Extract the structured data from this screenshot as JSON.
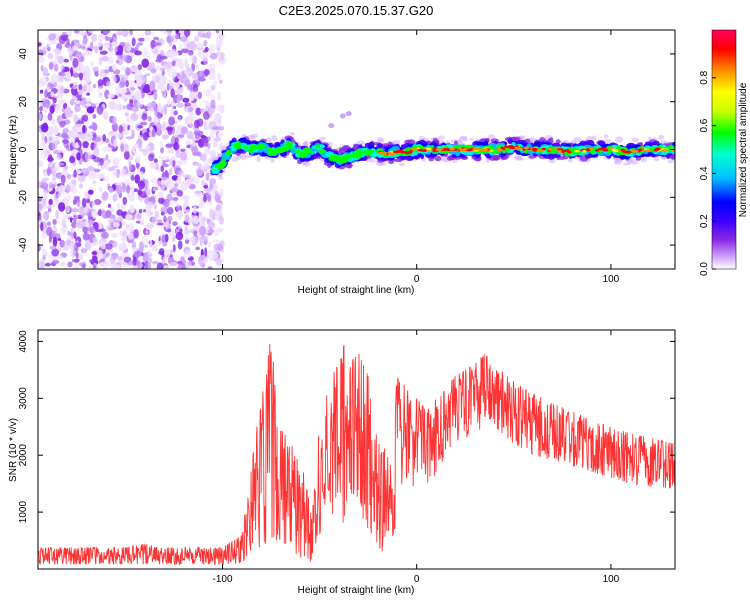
{
  "chart_data": [
    {
      "type": "heatmap",
      "title": "C2E3.2025.070.15.37.G20",
      "xlabel": "Height of straight line (km)",
      "ylabel": "Frequency (Hz)",
      "xlim": [
        -195,
        133
      ],
      "ylim": [
        -50,
        50
      ],
      "x_ticks": [
        -100,
        0,
        100
      ],
      "x_tick_labels": [
        "-100",
        "0",
        "100"
      ],
      "y_ticks": [
        -40,
        -20,
        0,
        20,
        40
      ],
      "y_tick_labels": [
        "-40",
        "-20",
        "0",
        "20",
        "40"
      ],
      "grid": false,
      "colorbar": {
        "label": "Normalized spectral amplitude",
        "range": [
          0,
          1
        ],
        "ticks": [
          0.0,
          0.2,
          0.4,
          0.6,
          0.8
        ],
        "tick_labels": [
          "0.0",
          "0.2",
          "0.4",
          "0.6",
          "0.8"
        ],
        "colors": [
          "#ffffff",
          "#cfa6ff",
          "#8a2be2",
          "#3d00ff",
          "#0000ff",
          "#00bfff",
          "#00ffd0",
          "#00ff00",
          "#ccff00",
          "#ffff00",
          "#ff8c00",
          "#ff0000",
          "#ff0060"
        ]
      },
      "regions": {
        "noise_x": [
          -195,
          -100
        ],
        "signal_x": [
          -105,
          133
        ],
        "signal_center_hz": [
          [
            -105,
            -9
          ],
          [
            -100,
            -6
          ],
          [
            -95,
            1
          ],
          [
            -90,
            2
          ],
          [
            -85,
            0
          ],
          [
            -80,
            1
          ],
          [
            -75,
            -1
          ],
          [
            -70,
            0
          ],
          [
            -65,
            2
          ],
          [
            -60,
            -2
          ],
          [
            -55,
            -1
          ],
          [
            -50,
            1
          ],
          [
            -45,
            -3
          ],
          [
            -40,
            -4
          ],
          [
            -35,
            -3
          ],
          [
            -30,
            -2
          ],
          [
            -25,
            -1
          ],
          [
            -20,
            -1
          ],
          [
            -15,
            -2
          ],
          [
            -10,
            -1
          ],
          [
            -5,
            -1
          ],
          [
            0,
            0
          ],
          [
            10,
            0
          ],
          [
            20,
            0
          ],
          [
            30,
            0
          ],
          [
            40,
            0
          ],
          [
            50,
            1
          ],
          [
            60,
            0
          ],
          [
            70,
            0
          ],
          [
            80,
            -1
          ],
          [
            90,
            0
          ],
          [
            100,
            0
          ],
          [
            110,
            -1
          ],
          [
            120,
            0
          ],
          [
            133,
            0
          ]
        ]
      }
    },
    {
      "type": "line",
      "xlabel": "Height of straight line (km)",
      "ylabel": "SNR (10 * v/v)",
      "xlim": [
        -195,
        133
      ],
      "ylim": [
        0,
        4200
      ],
      "x_ticks": [
        -100,
        0,
        100
      ],
      "x_tick_labels": [
        "-100",
        "0",
        "100"
      ],
      "y_ticks": [
        1000,
        2000,
        3000,
        4000
      ],
      "y_tick_labels": [
        "1000",
        "2000",
        "3000",
        "4000"
      ],
      "grid": false,
      "color": "#ff3333",
      "series": [
        {
          "envelope": [
            [
              -195,
              80,
              380
            ],
            [
              -150,
              80,
              380
            ],
            [
              -140,
              80,
              450
            ],
            [
              -130,
              80,
              380
            ],
            [
              -100,
              80,
              380
            ],
            [
              -90,
              100,
              600
            ],
            [
              -85,
              300,
              1900
            ],
            [
              -80,
              400,
              3000
            ],
            [
              -75,
              500,
              4100
            ],
            [
              -70,
              500,
              2500
            ],
            [
              -65,
              350,
              2200
            ],
            [
              -60,
              200,
              2000
            ],
            [
              -55,
              100,
              1200
            ],
            [
              -50,
              600,
              2500
            ],
            [
              -45,
              1000,
              3400
            ],
            [
              -40,
              900,
              3600
            ],
            [
              -38,
              800,
              4200
            ],
            [
              -35,
              1200,
              3600
            ],
            [
              -30,
              1000,
              3800
            ],
            [
              -25,
              700,
              3400
            ],
            [
              -20,
              400,
              2400
            ],
            [
              -15,
              200,
              2000
            ],
            [
              -10,
              900,
              3400
            ],
            [
              -5,
              1200,
              3200
            ],
            [
              0,
              1600,
              3000
            ],
            [
              5,
              1300,
              2800
            ],
            [
              10,
              1700,
              3000
            ],
            [
              20,
              2200,
              3400
            ],
            [
              30,
              2400,
              3600
            ],
            [
              35,
              2500,
              3800
            ],
            [
              40,
              2500,
              3600
            ],
            [
              50,
              2200,
              3300
            ],
            [
              60,
              2000,
              3100
            ],
            [
              70,
              1900,
              2900
            ],
            [
              80,
              1800,
              2800
            ],
            [
              90,
              1700,
              2600
            ],
            [
              100,
              1600,
              2500
            ],
            [
              110,
              1500,
              2400
            ],
            [
              120,
              1450,
              2300
            ],
            [
              133,
              1400,
              2200
            ]
          ]
        }
      ]
    }
  ]
}
